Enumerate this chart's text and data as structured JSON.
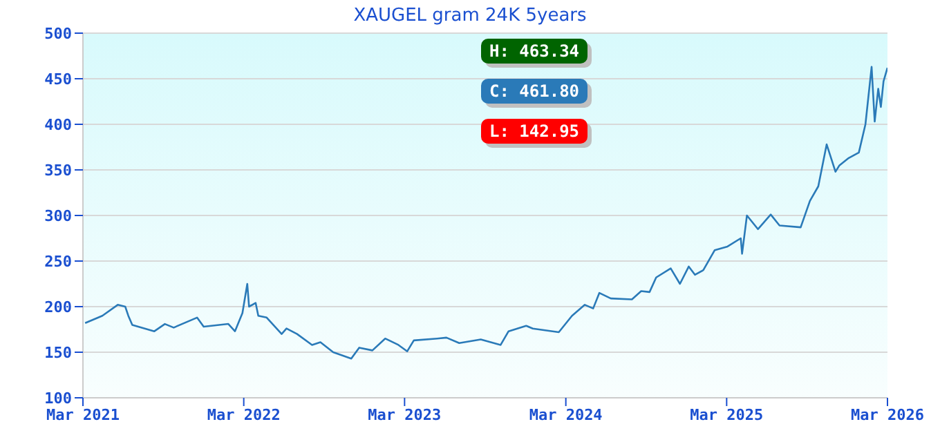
{
  "chart_data": {
    "type": "line",
    "title": "XAUGEL gram 24K 5years",
    "x": [
      "2021-03-06",
      "2021-04-14",
      "2021-05-19",
      "2021-06-05",
      "2021-06-12",
      "2021-06-21",
      "2021-08-10",
      "2021-09-03",
      "2021-09-23",
      "2021-11-15",
      "2021-11-30",
      "2022-01-25",
      "2022-02-09",
      "2022-02-26",
      "2022-03-09",
      "2022-03-13",
      "2022-03-28",
      "2022-04-03",
      "2022-04-22",
      "2022-05-26",
      "2022-06-06",
      "2022-06-30",
      "2022-08-03",
      "2022-08-22",
      "2022-09-20",
      "2022-10-31",
      "2022-11-18",
      "2022-12-18",
      "2023-01-16",
      "2023-02-15",
      "2023-03-07",
      "2023-03-22",
      "2023-05-14",
      "2023-06-04",
      "2023-07-03",
      "2023-08-21",
      "2023-10-05",
      "2023-10-23",
      "2023-12-02",
      "2023-12-17",
      "2024-02-14",
      "2024-03-15",
      "2024-04-13",
      "2024-05-02",
      "2024-05-16",
      "2024-06-11",
      "2024-07-29",
      "2024-08-19",
      "2024-09-07",
      "2024-09-22",
      "2024-10-25",
      "2024-11-15",
      "2024-12-05",
      "2024-12-19",
      "2025-01-07",
      "2025-02-02",
      "2025-03-03",
      "2025-04-02",
      "2025-04-05",
      "2025-04-16",
      "2025-05-11",
      "2025-06-09",
      "2025-06-29",
      "2025-08-16",
      "2025-09-06",
      "2025-09-25",
      "2025-10-14",
      "2025-11-03",
      "2025-11-12",
      "2025-12-03",
      "2025-12-26",
      "2026-01-10",
      "2026-01-24",
      "2026-01-31",
      "2026-02-08",
      "2026-02-14",
      "2026-02-20",
      "2026-03-01"
    ],
    "series": [
      {
        "color": "#2a7ab8",
        "values": [
          182,
          190,
          202,
          200,
          190,
          180,
          173,
          181,
          177,
          188,
          178,
          181,
          173,
          193,
          225,
          200,
          204,
          190,
          188,
          170,
          176,
          170,
          158,
          161,
          150,
          143,
          155,
          152,
          165,
          158,
          151,
          163,
          165,
          166,
          160,
          164,
          158,
          173,
          179,
          176,
          172,
          190,
          202,
          198,
          215,
          209,
          208,
          217,
          216,
          232,
          242,
          225,
          244,
          235,
          240,
          262,
          266,
          275,
          258,
          300,
          285,
          301,
          289,
          287,
          316,
          332,
          378,
          348,
          355,
          363,
          369,
          400,
          463,
          403,
          439,
          419,
          447,
          462
        ]
      }
    ],
    "xlim": [
      "2021-03-01",
      "2026-03-01"
    ],
    "xticks": [
      {
        "value": "2021-03-01",
        "label": "Mar 2021"
      },
      {
        "value": "2022-03-01",
        "label": "Mar 2022"
      },
      {
        "value": "2023-03-01",
        "label": "Mar 2023"
      },
      {
        "value": "2024-03-01",
        "label": "Mar 2024"
      },
      {
        "value": "2025-03-01",
        "label": "Mar 2025"
      },
      {
        "value": "2026-03-01",
        "label": "Mar 2026"
      }
    ],
    "ylim": [
      100,
      500
    ],
    "yticks": [
      100,
      150,
      200,
      250,
      300,
      350,
      400,
      450,
      500
    ],
    "grid": "y",
    "legend": false,
    "marker": "none",
    "line_style": "solid",
    "annotations": [
      "H: 463.34",
      "C: 461.80",
      "L: 142.95"
    ]
  }
}
